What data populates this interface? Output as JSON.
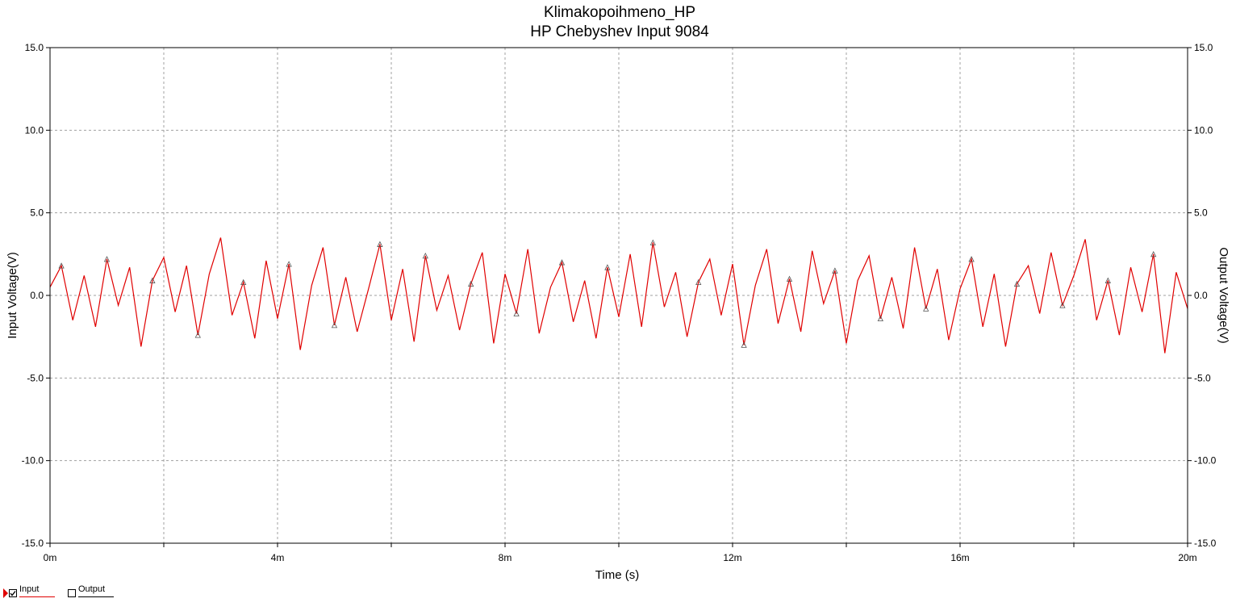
{
  "chart_data": {
    "type": "line",
    "title": "Klimakopoihmeno_HP",
    "subtitle": "HP Chebyshev Input 9084",
    "xlabel": "Time (s)",
    "ylabel_left": "Input Voltage(V)",
    "ylabel_right": "Output Voltage(V)",
    "xlim": [
      0,
      20
    ],
    "ylim": [
      -15,
      15
    ],
    "x_unit": "ms",
    "x_ticks": [
      0,
      4,
      8,
      12,
      16,
      20
    ],
    "x_tick_labels": [
      "0m",
      "4m",
      "8m",
      "12m",
      "16m",
      "20m"
    ],
    "x_grid": [
      0,
      2,
      4,
      6,
      8,
      10,
      12,
      14,
      16,
      18,
      20
    ],
    "y_ticks": [
      -15,
      -10,
      -5,
      0,
      5,
      10,
      15
    ],
    "y_tick_labels": [
      "-15.0",
      "-10.0",
      "-5.0",
      "0.0",
      "5.0",
      "10.0",
      "15.0"
    ],
    "grid": true,
    "series": [
      {
        "name": "Input",
        "color": "#e00000",
        "visible": true,
        "x": [
          0.0,
          0.2,
          0.4,
          0.6,
          0.8,
          1.0,
          1.2,
          1.4,
          1.6,
          1.8,
          2.0,
          2.2,
          2.4,
          2.6,
          2.8,
          3.0,
          3.2,
          3.4,
          3.6,
          3.8,
          4.0,
          4.2,
          4.4,
          4.6,
          4.8,
          5.0,
          5.2,
          5.4,
          5.6,
          5.8,
          6.0,
          6.2,
          6.4,
          6.6,
          6.8,
          7.0,
          7.2,
          7.4,
          7.6,
          7.8,
          8.0,
          8.2,
          8.4,
          8.6,
          8.8,
          9.0,
          9.2,
          9.4,
          9.6,
          9.8,
          10.0,
          10.2,
          10.4,
          10.6,
          10.8,
          11.0,
          11.2,
          11.4,
          11.6,
          11.8,
          12.0,
          12.2,
          12.4,
          12.6,
          12.8,
          13.0,
          13.2,
          13.4,
          13.6,
          13.8,
          14.0,
          14.2,
          14.4,
          14.6,
          14.8,
          15.0,
          15.2,
          15.4,
          15.6,
          15.8,
          16.0,
          16.2,
          16.4,
          16.6,
          16.8,
          17.0,
          17.2,
          17.4,
          17.6,
          17.8,
          18.0,
          18.2,
          18.4,
          18.6,
          18.8,
          19.0,
          19.2,
          19.4,
          19.6,
          19.8,
          20.0
        ],
        "values": [
          0.5,
          1.8,
          -1.5,
          1.2,
          -1.9,
          2.2,
          -0.6,
          1.7,
          -3.1,
          0.9,
          2.3,
          -1.0,
          1.8,
          -2.4,
          1.3,
          3.5,
          -1.2,
          0.8,
          -2.6,
          2.1,
          -1.4,
          1.9,
          -3.3,
          0.6,
          2.9,
          -1.8,
          1.1,
          -2.2,
          0.4,
          3.1,
          -1.5,
          1.6,
          -2.8,
          2.4,
          -0.9,
          1.2,
          -2.1,
          0.7,
          2.6,
          -2.9,
          1.3,
          -1.1,
          2.8,
          -2.3,
          0.5,
          2.0,
          -1.6,
          0.9,
          -2.6,
          1.7,
          -1.3,
          2.5,
          -1.9,
          3.2,
          -0.7,
          1.4,
          -2.5,
          0.8,
          2.2,
          -1.2,
          1.9,
          -3.0,
          0.6,
          2.8,
          -1.7,
          1.0,
          -2.2,
          2.7,
          -0.5,
          1.5,
          -2.9,
          0.9,
          2.4,
          -1.4,
          1.1,
          -2.0,
          2.9,
          -0.8,
          1.6,
          -2.7,
          0.4,
          2.2,
          -1.9,
          1.3,
          -3.1,
          0.7,
          1.8,
          -1.1,
          2.6,
          -0.6,
          1.2,
          3.4,
          -1.5,
          0.9,
          -2.4,
          1.7,
          -1.0,
          2.5,
          -3.5,
          1.4,
          -0.8
        ]
      },
      {
        "name": "Output",
        "color": "#ffffff",
        "visible": false,
        "x": [],
        "values": []
      }
    ],
    "legend_position": "bottom-left"
  },
  "legend": {
    "input_label": "Input",
    "output_label": "Output",
    "input_checked": true,
    "output_checked": false
  }
}
